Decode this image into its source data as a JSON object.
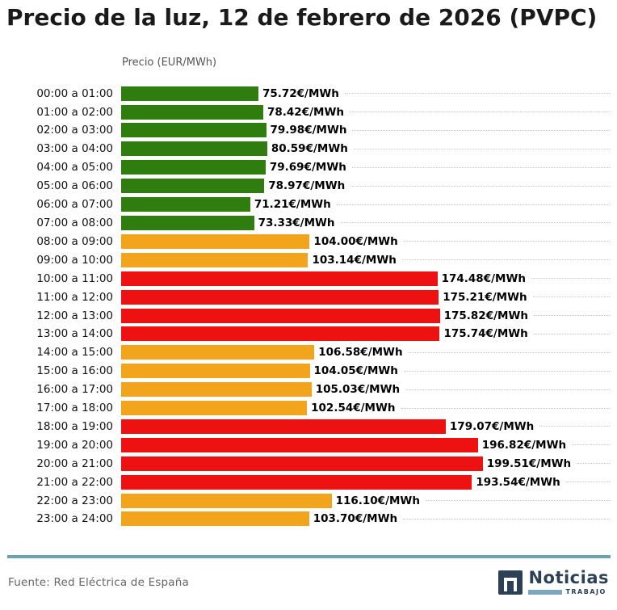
{
  "title": "Precio de la luz, 12 de febrero de 2026 (PVPC)",
  "axis_label": "Precio (EUR/MWh)",
  "footer": {
    "source": "Fuente: Red Eléctrica de España",
    "brand_name": "Noticias",
    "brand_subname": "TRABAJO"
  },
  "palette": {
    "low": "#2e7d0e",
    "mid": "#f2a41c",
    "high": "#ee1111",
    "divider": "#6f9fb5",
    "brand_navy": "#2d4156",
    "brand_blue": "#7ca6bb",
    "leader_dots": "#c4c4c4"
  },
  "chart_data": {
    "type": "bar",
    "orientation": "horizontal",
    "title": "Precio de la luz, 12 de febrero de 2026 (PVPC)",
    "xlabel": "Precio (EUR/MWh)",
    "ylabel": "",
    "xlim": [
      0,
      270
    ],
    "grid": "dotted-leader-lines",
    "legend": "none",
    "unit": "€/MWh",
    "categories": [
      "00:00 a 01:00",
      "01:00 a 02:00",
      "02:00 a 03:00",
      "03:00 a 04:00",
      "04:00 a 05:00",
      "05:00 a 06:00",
      "06:00 a 07:00",
      "07:00 a 08:00",
      "08:00 a 09:00",
      "09:00 a 10:00",
      "10:00 a 11:00",
      "11:00 a 12:00",
      "12:00 a 13:00",
      "13:00 a 14:00",
      "14:00 a 15:00",
      "15:00 a 16:00",
      "16:00 a 17:00",
      "17:00 a 18:00",
      "18:00 a 19:00",
      "19:00 a 20:00",
      "20:00 a 21:00",
      "21:00 a 22:00",
      "22:00 a 23:00",
      "23:00 a 24:00"
    ],
    "values": [
      75.72,
      78.42,
      79.98,
      80.59,
      79.69,
      78.97,
      71.21,
      73.33,
      104.0,
      103.14,
      174.48,
      175.21,
      175.82,
      175.74,
      106.58,
      104.05,
      105.03,
      102.54,
      179.07,
      196.82,
      199.51,
      193.54,
      116.1,
      103.7
    ],
    "labels": [
      "75.72€/MWh",
      "78.42€/MWh",
      "79.98€/MWh",
      "80.59€/MWh",
      "79.69€/MWh",
      "78.97€/MWh",
      "71.21€/MWh",
      "73.33€/MWh",
      "104.00€/MWh",
      "103.14€/MWh",
      "174.48€/MWh",
      "175.21€/MWh",
      "175.82€/MWh",
      "175.74€/MWh",
      "106.58€/MWh",
      "104.05€/MWh",
      "105.03€/MWh",
      "102.54€/MWh",
      "179.07€/MWh",
      "196.82€/MWh",
      "199.51€/MWh",
      "193.54€/MWh",
      "116.10€/MWh",
      "103.70€/MWh"
    ],
    "levels": [
      "low",
      "low",
      "low",
      "low",
      "low",
      "low",
      "low",
      "low",
      "mid",
      "mid",
      "high",
      "high",
      "high",
      "high",
      "mid",
      "mid",
      "mid",
      "mid",
      "high",
      "high",
      "high",
      "high",
      "mid",
      "mid"
    ]
  }
}
